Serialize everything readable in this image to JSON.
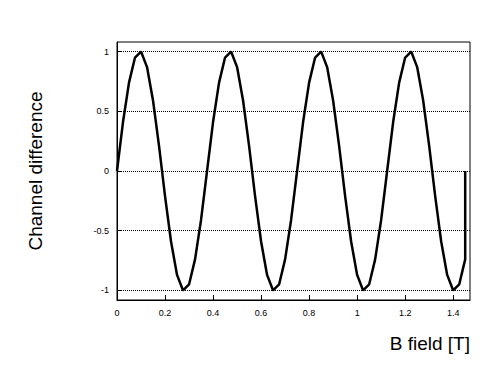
{
  "chart_data": {
    "type": "line",
    "x_label": "B field [T]",
    "y_label": "Channel difference",
    "x": [
      0,
      0.025,
      0.05,
      0.075,
      0.1,
      0.125,
      0.15,
      0.175,
      0.2,
      0.225,
      0.25,
      0.275,
      0.3,
      0.325,
      0.35,
      0.375,
      0.4,
      0.425,
      0.45,
      0.475,
      0.5,
      0.525,
      0.55,
      0.575,
      0.6,
      0.625,
      0.65,
      0.675,
      0.7,
      0.725,
      0.75,
      0.775,
      0.8,
      0.825,
      0.85,
      0.875,
      0.9,
      0.925,
      0.95,
      0.975,
      1,
      1.025,
      1.05,
      1.075,
      1.1,
      1.125,
      1.15,
      1.175,
      1.2,
      1.225,
      1.25,
      1.275,
      1.3,
      1.325,
      1.35,
      1.375,
      1.4,
      1.425,
      1.45,
      1.45
    ],
    "values": [
      0,
      0.41,
      0.74,
      0.95,
      1,
      0.87,
      0.59,
      0.21,
      -0.21,
      -0.59,
      -0.87,
      -1,
      -0.95,
      -0.74,
      -0.41,
      0,
      0.41,
      0.74,
      0.95,
      1,
      0.87,
      0.59,
      0.21,
      -0.21,
      -0.59,
      -0.87,
      -1,
      -0.95,
      -0.74,
      -0.41,
      0,
      0.41,
      0.74,
      0.95,
      1,
      0.87,
      0.59,
      0.21,
      -0.21,
      -0.59,
      -0.87,
      -1,
      -0.95,
      -0.74,
      -0.41,
      0,
      0.41,
      0.74,
      0.95,
      1,
      0.87,
      0.59,
      0.21,
      -0.21,
      -0.59,
      -0.87,
      -1,
      -0.95,
      -0.74,
      0
    ],
    "color": "#000000",
    "xlim": [
      0,
      1.47
    ],
    "xticks": [
      0,
      0.2,
      0.4,
      0.6,
      0.8,
      1,
      1.2,
      1.4
    ],
    "ylim": [
      -1.08,
      1.08
    ],
    "yticks": [
      -1,
      -0.5,
      0,
      0.5,
      1
    ],
    "grid": true
  }
}
